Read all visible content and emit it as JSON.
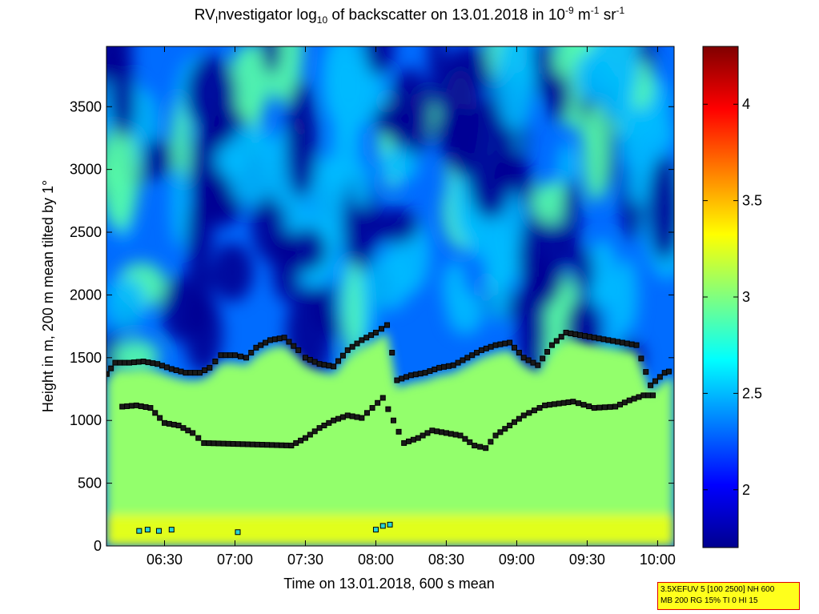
{
  "chart_data": {
    "type": "heatmap",
    "title_parts": [
      "RV",
      "I",
      "nvestigator log",
      "10",
      " of backscatter on 13.01.2018 in 10",
      "-9",
      " m",
      "-1",
      " sr",
      "-1"
    ],
    "xlabel": "Time on 13.01.2018, 600 s mean",
    "ylabel": "Height in m, 200 m mean tilted by 1°",
    "xlim_hours": [
      6.088,
      10.117
    ],
    "ylim": [
      0,
      3980
    ],
    "x_ticks": [
      {
        "hour": 6.5,
        "label": "06:30"
      },
      {
        "hour": 7.0,
        "label": "07:00"
      },
      {
        "hour": 7.5,
        "label": "07:30"
      },
      {
        "hour": 8.0,
        "label": "08:00"
      },
      {
        "hour": 8.5,
        "label": "08:30"
      },
      {
        "hour": 9.0,
        "label": "09:00"
      },
      {
        "hour": 9.5,
        "label": "09:30"
      },
      {
        "hour": 10.0,
        "label": "10:00"
      }
    ],
    "y_ticks": [
      0,
      500,
      1000,
      1500,
      2000,
      2500,
      3000,
      3500
    ],
    "colorbar": {
      "colormap": "jet",
      "clim": [
        1.7,
        4.3
      ],
      "ticks": [
        {
          "value": 2,
          "label": "2"
        },
        {
          "value": 2.5,
          "label": "2.5"
        },
        {
          "value": 3,
          "label": "3"
        },
        {
          "value": 3.5,
          "label": "3.5"
        },
        {
          "value": 4,
          "label": "4"
        }
      ]
    },
    "field_description_levels": {
      "near_surface_0_200m": 3.3,
      "boundary_layer_200_1400m": 3.05,
      "upper_layer_1600_4000m": 2.3,
      "low_signal_patches": 1.75
    },
    "layer_top_black": [
      [
        6.09,
        1370
      ],
      [
        6.15,
        1460
      ],
      [
        6.25,
        1460
      ],
      [
        6.35,
        1470
      ],
      [
        6.45,
        1450
      ],
      [
        6.55,
        1410
      ],
      [
        6.65,
        1380
      ],
      [
        6.75,
        1380
      ],
      [
        6.82,
        1420
      ],
      [
        6.9,
        1520
      ],
      [
        7.0,
        1520
      ],
      [
        7.08,
        1500
      ],
      [
        7.15,
        1580
      ],
      [
        7.25,
        1640
      ],
      [
        7.35,
        1660
      ],
      [
        7.45,
        1560
      ],
      [
        7.5,
        1500
      ],
      [
        7.6,
        1450
      ],
      [
        7.7,
        1430
      ],
      [
        7.8,
        1560
      ],
      [
        7.9,
        1640
      ],
      [
        8.0,
        1700
      ],
      [
        8.08,
        1760
      ],
      [
        8.15,
        1320
      ],
      [
        8.25,
        1360
      ],
      [
        8.35,
        1380
      ],
      [
        8.45,
        1420
      ],
      [
        8.55,
        1440
      ],
      [
        8.65,
        1500
      ],
      [
        8.75,
        1560
      ],
      [
        8.85,
        1600
      ],
      [
        8.95,
        1620
      ],
      [
        9.05,
        1500
      ],
      [
        9.15,
        1440
      ],
      [
        9.25,
        1600
      ],
      [
        9.35,
        1700
      ],
      [
        9.45,
        1680
      ],
      [
        9.55,
        1660
      ],
      [
        9.65,
        1640
      ],
      [
        9.75,
        1620
      ],
      [
        9.85,
        1600
      ],
      [
        9.95,
        1280
      ],
      [
        10.05,
        1380
      ],
      [
        10.11,
        1400
      ]
    ],
    "layer_low_black": [
      [
        6.2,
        1110
      ],
      [
        6.3,
        1120
      ],
      [
        6.4,
        1100
      ],
      [
        6.5,
        980
      ],
      [
        6.6,
        960
      ],
      [
        6.7,
        900
      ],
      [
        6.78,
        820
      ],
      [
        7.4,
        800
      ],
      [
        7.5,
        860
      ],
      [
        7.6,
        940
      ],
      [
        7.7,
        1000
      ],
      [
        7.8,
        1040
      ],
      [
        7.9,
        1020
      ],
      [
        8.05,
        1180
      ],
      [
        8.2,
        820
      ],
      [
        8.3,
        860
      ],
      [
        8.4,
        920
      ],
      [
        8.5,
        900
      ],
      [
        8.6,
        880
      ],
      [
        8.7,
        800
      ],
      [
        8.78,
        780
      ],
      [
        8.85,
        880
      ],
      [
        8.95,
        960
      ],
      [
        9.05,
        1040
      ],
      [
        9.2,
        1120
      ],
      [
        9.4,
        1150
      ],
      [
        9.55,
        1100
      ],
      [
        9.7,
        1110
      ],
      [
        9.8,
        1160
      ],
      [
        9.9,
        1200
      ],
      [
        10.0,
        1200
      ]
    ],
    "surface_markers": [
      [
        6.32,
        120
      ],
      [
        6.38,
        130
      ],
      [
        6.46,
        120
      ],
      [
        6.55,
        130
      ],
      [
        7.02,
        110
      ],
      [
        8.0,
        130
      ],
      [
        8.05,
        160
      ],
      [
        8.1,
        170
      ]
    ]
  },
  "info_box": {
    "line1": "3.5XEFUV 5 [100 2500] NH 600",
    "line2": "MB 200 RG 15% TI 0 HI 15"
  }
}
